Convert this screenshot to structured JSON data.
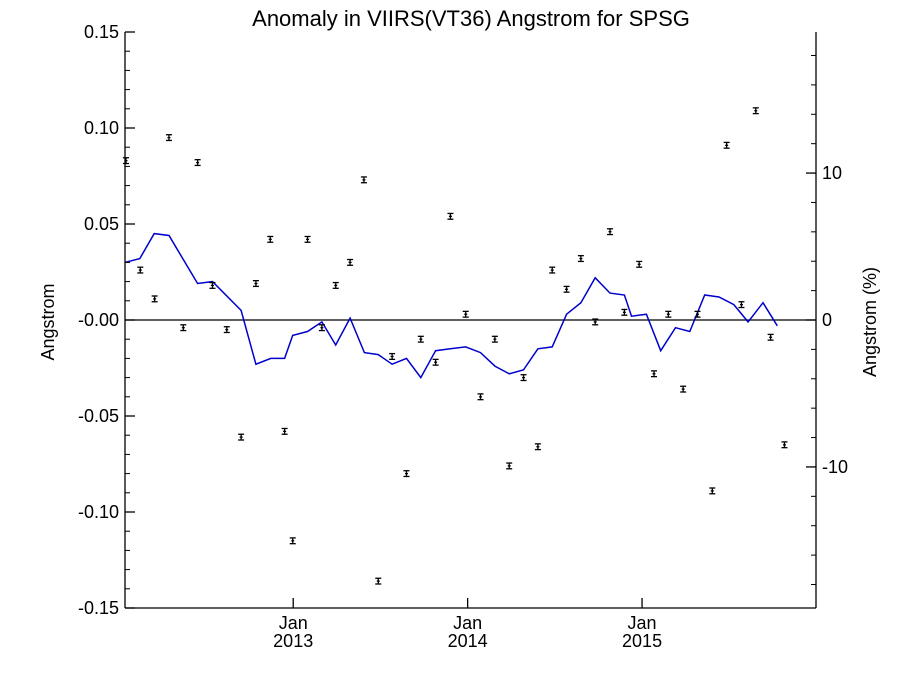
{
  "chart_data": {
    "type": "scatter",
    "title": "Anomaly in VIIRS(VT36) Angstrom for SPSG",
    "ylabel": "Angstrom",
    "ylabel_right": "Angstrom (%)",
    "ylim": [
      -0.15,
      0.15
    ],
    "y_ticks": [
      0.15,
      0.1,
      0.05,
      0.0,
      -0.05,
      -0.1,
      -0.15
    ],
    "y_tick_labels": [
      "0.15",
      "0.10",
      "0.05",
      "-0.00",
      "-0.05",
      "-0.10",
      "-0.15"
    ],
    "y2lim": [
      -19.6,
      19.6
    ],
    "y2_ticks": [
      10,
      0,
      -10
    ],
    "y2_tick_labels": [
      "10",
      "0",
      "-10"
    ],
    "xlim": [
      "2012-01-15",
      "2015-12-31"
    ],
    "x_ticks": [
      {
        "date": "2013-01-01",
        "month": "Jan",
        "year": "2013"
      },
      {
        "date": "2014-01-01",
        "month": "Jan",
        "year": "2014"
      },
      {
        "date": "2015-01-01",
        "month": "Jan",
        "year": "2015"
      }
    ],
    "zero_line": true,
    "points": [
      {
        "x": "2012-01-17",
        "y": 0.083
      },
      {
        "x": "2012-02-16",
        "y": 0.026
      },
      {
        "x": "2012-03-17",
        "y": 0.011
      },
      {
        "x": "2012-04-16",
        "y": 0.095
      },
      {
        "x": "2012-05-16",
        "y": -0.004
      },
      {
        "x": "2012-06-15",
        "y": 0.082
      },
      {
        "x": "2012-07-16",
        "y": 0.018
      },
      {
        "x": "2012-08-15",
        "y": -0.005
      },
      {
        "x": "2012-09-14",
        "y": -0.061
      },
      {
        "x": "2012-10-15",
        "y": 0.019
      },
      {
        "x": "2012-11-14",
        "y": 0.042
      },
      {
        "x": "2012-12-14",
        "y": -0.058
      },
      {
        "x": "2012-12-31",
        "y": -0.115
      },
      {
        "x": "2013-01-31",
        "y": 0.042
      },
      {
        "x": "2013-03-02",
        "y": -0.004
      },
      {
        "x": "2013-03-31",
        "y": 0.018
      },
      {
        "x": "2013-04-30",
        "y": 0.03
      },
      {
        "x": "2013-05-29",
        "y": 0.073
      },
      {
        "x": "2013-06-28",
        "y": -0.136
      },
      {
        "x": "2013-07-27",
        "y": -0.019
      },
      {
        "x": "2013-08-26",
        "y": -0.08
      },
      {
        "x": "2013-09-25",
        "y": -0.01
      },
      {
        "x": "2013-10-26",
        "y": -0.022
      },
      {
        "x": "2013-11-26",
        "y": 0.054
      },
      {
        "x": "2013-12-28",
        "y": 0.003
      },
      {
        "x": "2014-01-28",
        "y": -0.04
      },
      {
        "x": "2014-02-27",
        "y": -0.01
      },
      {
        "x": "2014-03-29",
        "y": -0.076
      },
      {
        "x": "2014-04-28",
        "y": -0.03
      },
      {
        "x": "2014-05-28",
        "y": -0.066
      },
      {
        "x": "2014-06-27",
        "y": 0.026
      },
      {
        "x": "2014-07-27",
        "y": 0.016
      },
      {
        "x": "2014-08-26",
        "y": 0.032
      },
      {
        "x": "2014-09-25",
        "y": -0.001
      },
      {
        "x": "2014-10-26",
        "y": 0.046
      },
      {
        "x": "2014-11-25",
        "y": 0.004
      },
      {
        "x": "2014-12-26",
        "y": 0.029
      },
      {
        "x": "2015-01-26",
        "y": -0.028
      },
      {
        "x": "2015-02-25",
        "y": 0.003
      },
      {
        "x": "2015-03-28",
        "y": -0.036
      },
      {
        "x": "2015-04-27",
        "y": 0.003
      },
      {
        "x": "2015-05-28",
        "y": -0.089
      },
      {
        "x": "2015-06-27",
        "y": 0.091
      },
      {
        "x": "2015-07-28",
        "y": 0.008
      },
      {
        "x": "2015-08-27",
        "y": 0.109
      },
      {
        "x": "2015-09-27",
        "y": -0.009
      },
      {
        "x": "2015-10-26",
        "y": -0.065
      }
    ],
    "error_half": 0.0015,
    "line_series": {
      "color": "#0000cc",
      "points": [
        {
          "x": "2012-01-15",
          "y": 0.03
        },
        {
          "x": "2012-02-15",
          "y": 0.032
        },
        {
          "x": "2012-03-16",
          "y": 0.045
        },
        {
          "x": "2012-04-16",
          "y": 0.044
        },
        {
          "x": "2012-06-15",
          "y": 0.019
        },
        {
          "x": "2012-07-16",
          "y": 0.02
        },
        {
          "x": "2012-09-14",
          "y": 0.005
        },
        {
          "x": "2012-10-15",
          "y": -0.023
        },
        {
          "x": "2012-11-15",
          "y": -0.02
        },
        {
          "x": "2012-12-14",
          "y": -0.02
        },
        {
          "x": "2012-12-31",
          "y": -0.008
        },
        {
          "x": "2013-01-31",
          "y": -0.006
        },
        {
          "x": "2013-03-02",
          "y": -0.001
        },
        {
          "x": "2013-03-31",
          "y": -0.013
        },
        {
          "x": "2013-04-30",
          "y": 0.001
        },
        {
          "x": "2013-05-30",
          "y": -0.017
        },
        {
          "x": "2013-06-28",
          "y": -0.018
        },
        {
          "x": "2013-07-27",
          "y": -0.023
        },
        {
          "x": "2013-08-26",
          "y": -0.02
        },
        {
          "x": "2013-09-25",
          "y": -0.03
        },
        {
          "x": "2013-10-26",
          "y": -0.016
        },
        {
          "x": "2013-11-26",
          "y": -0.015
        },
        {
          "x": "2013-12-28",
          "y": -0.014
        },
        {
          "x": "2014-01-28",
          "y": -0.017
        },
        {
          "x": "2014-02-27",
          "y": -0.024
        },
        {
          "x": "2014-03-29",
          "y": -0.028
        },
        {
          "x": "2014-04-28",
          "y": -0.026
        },
        {
          "x": "2014-05-28",
          "y": -0.015
        },
        {
          "x": "2014-06-27",
          "y": -0.014
        },
        {
          "x": "2014-07-27",
          "y": 0.003
        },
        {
          "x": "2014-08-26",
          "y": 0.009
        },
        {
          "x": "2014-09-25",
          "y": 0.022
        },
        {
          "x": "2014-10-26",
          "y": 0.014
        },
        {
          "x": "2014-11-25",
          "y": 0.013
        },
        {
          "x": "2014-12-10",
          "y": 0.002
        },
        {
          "x": "2015-01-10",
          "y": 0.003
        },
        {
          "x": "2015-02-09",
          "y": -0.016
        },
        {
          "x": "2015-03-12",
          "y": -0.004
        },
        {
          "x": "2015-04-11",
          "y": -0.006
        },
        {
          "x": "2015-05-12",
          "y": 0.013
        },
        {
          "x": "2015-06-11",
          "y": 0.012
        },
        {
          "x": "2015-07-12",
          "y": 0.008
        },
        {
          "x": "2015-08-11",
          "y": -0.001
        },
        {
          "x": "2015-09-11",
          "y": 0.009
        },
        {
          "x": "2015-10-11",
          "y": -0.003
        }
      ]
    }
  }
}
